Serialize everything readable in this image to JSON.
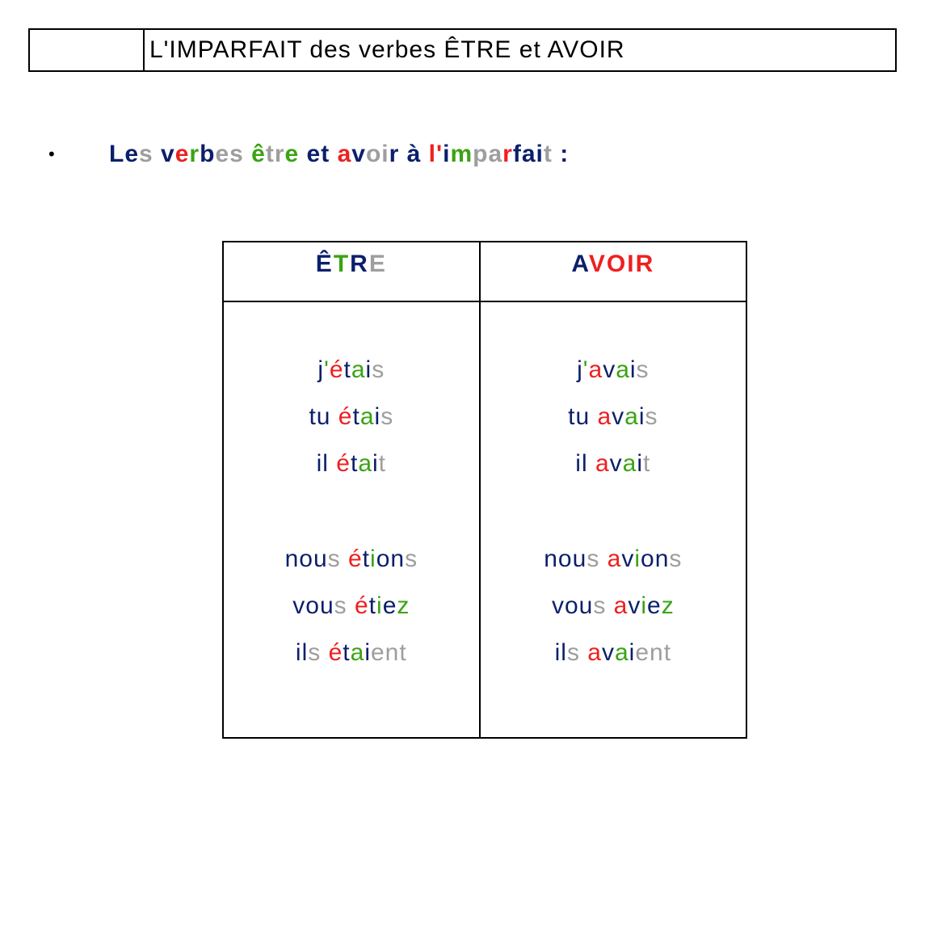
{
  "colors": {
    "navy": "#0b1f6b",
    "red": "#ee2020",
    "gray": "#9e9e9e",
    "green": "#3aa412",
    "black": "#000000"
  },
  "font": {
    "title_size_pt": 22,
    "body_size_pt": 22,
    "weight_bold": "bold"
  },
  "title": "L'IMPARFAIT des verbes ÊTRE et AVOIR",
  "bullet": {
    "segments": [
      {
        "t": "Le",
        "c": "navy"
      },
      {
        "t": "s ",
        "c": "gray"
      },
      {
        "t": "v",
        "c": "navy"
      },
      {
        "t": "e",
        "c": "red"
      },
      {
        "t": "r",
        "c": "green"
      },
      {
        "t": "b",
        "c": "navy"
      },
      {
        "t": "e",
        "c": "gray"
      },
      {
        "t": "s ",
        "c": "gray"
      },
      {
        "t": "ê",
        "c": "green"
      },
      {
        "t": "tr",
        "c": "gray"
      },
      {
        "t": "e ",
        "c": "green"
      },
      {
        "t": "et ",
        "c": "navy"
      },
      {
        "t": "a",
        "c": "red"
      },
      {
        "t": "v",
        "c": "navy"
      },
      {
        "t": "oi",
        "c": "gray"
      },
      {
        "t": "r ",
        "c": "navy"
      },
      {
        "t": "à ",
        "c": "navy"
      },
      {
        "t": "l'",
        "c": "red"
      },
      {
        "t": "i",
        "c": "navy"
      },
      {
        "t": "m",
        "c": "green"
      },
      {
        "t": "pa",
        "c": "gray"
      },
      {
        "t": "r",
        "c": "red"
      },
      {
        "t": "fai",
        "c": "navy"
      },
      {
        "t": "t ",
        "c": "gray"
      },
      {
        "t": ":",
        "c": "navy"
      }
    ]
  },
  "table": {
    "headers": [
      {
        "segments": [
          {
            "t": "Ê",
            "c": "navy"
          },
          {
            "t": "T",
            "c": "green"
          },
          {
            "t": "R",
            "c": "navy"
          },
          {
            "t": "E",
            "c": "gray"
          }
        ]
      },
      {
        "segments": [
          {
            "t": "A",
            "c": "navy"
          },
          {
            "t": "V",
            "c": "red"
          },
          {
            "t": "O",
            "c": "red"
          },
          {
            "t": "I",
            "c": "red"
          },
          {
            "t": "R",
            "c": "red"
          }
        ]
      }
    ],
    "columns": [
      {
        "groups": [
          [
            {
              "segments": [
                {
                  "t": "j",
                  "c": "navy"
                },
                {
                  "t": "'",
                  "c": "green"
                },
                {
                  "t": "é",
                  "c": "red"
                },
                {
                  "t": "t",
                  "c": "navy"
                },
                {
                  "t": "a",
                  "c": "green"
                },
                {
                  "t": "i",
                  "c": "navy"
                },
                {
                  "t": "s",
                  "c": "gray"
                }
              ]
            },
            {
              "segments": [
                {
                  "t": "tu ",
                  "c": "navy"
                },
                {
                  "t": "é",
                  "c": "red"
                },
                {
                  "t": "t",
                  "c": "navy"
                },
                {
                  "t": "a",
                  "c": "green"
                },
                {
                  "t": "i",
                  "c": "navy"
                },
                {
                  "t": "s",
                  "c": "gray"
                }
              ]
            },
            {
              "segments": [
                {
                  "t": "il ",
                  "c": "navy"
                },
                {
                  "t": "é",
                  "c": "red"
                },
                {
                  "t": "t",
                  "c": "navy"
                },
                {
                  "t": "a",
                  "c": "green"
                },
                {
                  "t": "i",
                  "c": "navy"
                },
                {
                  "t": "t",
                  "c": "gray"
                }
              ]
            }
          ],
          [
            {
              "segments": [
                {
                  "t": "nou",
                  "c": "navy"
                },
                {
                  "t": "s ",
                  "c": "gray"
                },
                {
                  "t": "é",
                  "c": "red"
                },
                {
                  "t": "t",
                  "c": "navy"
                },
                {
                  "t": "i",
                  "c": "green"
                },
                {
                  "t": "on",
                  "c": "navy"
                },
                {
                  "t": "s",
                  "c": "gray"
                }
              ]
            },
            {
              "segments": [
                {
                  "t": "vou",
                  "c": "navy"
                },
                {
                  "t": "s ",
                  "c": "gray"
                },
                {
                  "t": "é",
                  "c": "red"
                },
                {
                  "t": "t",
                  "c": "navy"
                },
                {
                  "t": "i",
                  "c": "green"
                },
                {
                  "t": "e",
                  "c": "navy"
                },
                {
                  "t": "z",
                  "c": "green"
                }
              ]
            },
            {
              "segments": [
                {
                  "t": "il",
                  "c": "navy"
                },
                {
                  "t": "s ",
                  "c": "gray"
                },
                {
                  "t": "é",
                  "c": "red"
                },
                {
                  "t": "t",
                  "c": "navy"
                },
                {
                  "t": "a",
                  "c": "green"
                },
                {
                  "t": "i",
                  "c": "navy"
                },
                {
                  "t": "ent",
                  "c": "gray"
                }
              ]
            }
          ]
        ]
      },
      {
        "groups": [
          [
            {
              "segments": [
                {
                  "t": "j",
                  "c": "navy"
                },
                {
                  "t": "'",
                  "c": "green"
                },
                {
                  "t": "a",
                  "c": "red"
                },
                {
                  "t": "v",
                  "c": "navy"
                },
                {
                  "t": "a",
                  "c": "green"
                },
                {
                  "t": "i",
                  "c": "navy"
                },
                {
                  "t": "s",
                  "c": "gray"
                }
              ]
            },
            {
              "segments": [
                {
                  "t": "tu ",
                  "c": "navy"
                },
                {
                  "t": "a",
                  "c": "red"
                },
                {
                  "t": "v",
                  "c": "navy"
                },
                {
                  "t": "a",
                  "c": "green"
                },
                {
                  "t": "i",
                  "c": "navy"
                },
                {
                  "t": "s",
                  "c": "gray"
                }
              ]
            },
            {
              "segments": [
                {
                  "t": "il ",
                  "c": "navy"
                },
                {
                  "t": "a",
                  "c": "red"
                },
                {
                  "t": "v",
                  "c": "navy"
                },
                {
                  "t": "a",
                  "c": "green"
                },
                {
                  "t": "i",
                  "c": "navy"
                },
                {
                  "t": "t",
                  "c": "gray"
                }
              ]
            }
          ],
          [
            {
              "segments": [
                {
                  "t": "nou",
                  "c": "navy"
                },
                {
                  "t": "s ",
                  "c": "gray"
                },
                {
                  "t": "a",
                  "c": "red"
                },
                {
                  "t": "v",
                  "c": "navy"
                },
                {
                  "t": "i",
                  "c": "green"
                },
                {
                  "t": "on",
                  "c": "navy"
                },
                {
                  "t": "s",
                  "c": "gray"
                }
              ]
            },
            {
              "segments": [
                {
                  "t": "vou",
                  "c": "navy"
                },
                {
                  "t": "s ",
                  "c": "gray"
                },
                {
                  "t": "a",
                  "c": "red"
                },
                {
                  "t": "v",
                  "c": "navy"
                },
                {
                  "t": "i",
                  "c": "green"
                },
                {
                  "t": "e",
                  "c": "navy"
                },
                {
                  "t": "z",
                  "c": "green"
                }
              ]
            },
            {
              "segments": [
                {
                  "t": "il",
                  "c": "navy"
                },
                {
                  "t": "s ",
                  "c": "gray"
                },
                {
                  "t": "a",
                  "c": "red"
                },
                {
                  "t": "v",
                  "c": "navy"
                },
                {
                  "t": "a",
                  "c": "green"
                },
                {
                  "t": "i",
                  "c": "navy"
                },
                {
                  "t": "ent",
                  "c": "gray"
                }
              ]
            }
          ]
        ]
      }
    ]
  }
}
